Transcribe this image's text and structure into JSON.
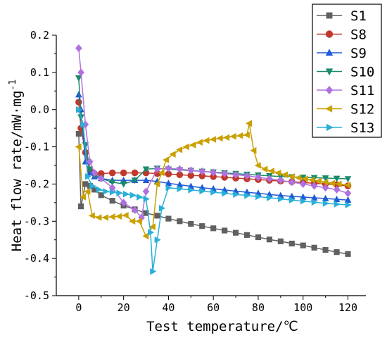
{
  "chart_data": {
    "type": "line",
    "xlabel": "Test temperature/℃",
    "ylabel": "Heat flow rate/mW·mg",
    "ylabel_sup": "-1",
    "xlim": [
      -10,
      128
    ],
    "ylim": [
      -0.5,
      0.2
    ],
    "xticks": [
      "0",
      "20",
      "40",
      "60",
      "80",
      "100",
      "120"
    ],
    "yticks": [
      "0.2",
      "0.1",
      "0.0",
      "-0.1",
      "-0.2",
      "-0.3",
      "-0.4",
      "-0.5"
    ],
    "legend_position": "top-right",
    "series": [
      {
        "name": "S1",
        "color": "#606060",
        "marker": "square",
        "x": [
          0,
          1,
          3,
          5,
          7,
          10,
          15,
          20,
          25,
          30,
          35,
          40,
          45,
          50,
          55,
          60,
          65,
          70,
          75,
          80,
          85,
          90,
          95,
          100,
          105,
          110,
          115,
          120
        ],
        "y": [
          -0.065,
          -0.26,
          -0.2,
          -0.205,
          -0.215,
          -0.23,
          -0.245,
          -0.258,
          -0.268,
          -0.278,
          -0.285,
          -0.293,
          -0.3,
          -0.307,
          -0.313,
          -0.319,
          -0.325,
          -0.331,
          -0.337,
          -0.343,
          -0.349,
          -0.354,
          -0.36,
          -0.365,
          -0.371,
          -0.377,
          -0.383,
          -0.388
        ]
      },
      {
        "name": "S8",
        "color": "#c0392b",
        "marker": "circle",
        "x": [
          0,
          1,
          3,
          5,
          7,
          10,
          15,
          20,
          25,
          30,
          35,
          40,
          45,
          50,
          55,
          60,
          65,
          70,
          75,
          80,
          85,
          90,
          95,
          100,
          105,
          110,
          115,
          120
        ],
        "y": [
          0.02,
          -0.05,
          -0.115,
          -0.165,
          -0.172,
          -0.172,
          -0.17,
          -0.17,
          -0.17,
          -0.17,
          -0.172,
          -0.173,
          -0.175,
          -0.177,
          -0.178,
          -0.18,
          -0.182,
          -0.184,
          -0.186,
          -0.188,
          -0.19,
          -0.192,
          -0.194,
          -0.196,
          -0.198,
          -0.2,
          -0.202,
          -0.205
        ]
      },
      {
        "name": "S9",
        "color": "#1f5bd6",
        "marker": "triangle-up",
        "x": [
          0,
          1,
          3,
          5,
          7,
          10,
          15,
          20,
          25,
          30,
          35,
          40,
          45,
          50,
          55,
          60,
          65,
          70,
          75,
          80,
          85,
          90,
          95,
          100,
          105,
          110,
          115,
          120
        ],
        "y": [
          0.04,
          0.0,
          -0.14,
          -0.17,
          -0.18,
          -0.185,
          -0.19,
          -0.19,
          -0.19,
          -0.19,
          -0.193,
          -0.198,
          -0.202,
          -0.206,
          -0.21,
          -0.213,
          -0.216,
          -0.219,
          -0.222,
          -0.225,
          -0.228,
          -0.231,
          -0.233,
          -0.235,
          -0.237,
          -0.239,
          -0.241,
          -0.243
        ]
      },
      {
        "name": "S10",
        "color": "#1a8a6a",
        "marker": "triangle-down",
        "x": [
          0,
          1,
          3,
          5,
          7,
          10,
          15,
          20,
          25,
          30,
          35,
          40,
          45,
          50,
          55,
          60,
          65,
          70,
          75,
          80,
          85,
          90,
          95,
          100,
          105,
          110,
          115,
          120
        ],
        "y": [
          0.085,
          -0.02,
          -0.095,
          -0.16,
          -0.175,
          -0.185,
          -0.195,
          -0.2,
          -0.19,
          -0.16,
          -0.158,
          -0.16,
          -0.162,
          -0.164,
          -0.166,
          -0.168,
          -0.17,
          -0.172,
          -0.174,
          -0.176,
          -0.178,
          -0.18,
          -0.181,
          -0.182,
          -0.183,
          -0.184,
          -0.185,
          -0.186
        ]
      },
      {
        "name": "S11",
        "color": "#b070e0",
        "marker": "diamond",
        "x": [
          0,
          1,
          3,
          5,
          7,
          10,
          15,
          20,
          25,
          28,
          30,
          35,
          40,
          45,
          50,
          55,
          60,
          65,
          70,
          75,
          80,
          85,
          90,
          95,
          100,
          105,
          110,
          115,
          120
        ],
        "y": [
          0.165,
          0.1,
          -0.04,
          -0.14,
          -0.17,
          -0.185,
          -0.21,
          -0.25,
          -0.27,
          -0.29,
          -0.22,
          -0.16,
          -0.158,
          -0.16,
          -0.163,
          -0.166,
          -0.169,
          -0.172,
          -0.175,
          -0.178,
          -0.182,
          -0.186,
          -0.19,
          -0.195,
          -0.2,
          -0.205,
          -0.21,
          -0.215,
          -0.225
        ]
      },
      {
        "name": "S12",
        "color": "#c9a000",
        "marker": "triangle-left",
        "x": [
          0,
          2,
          4,
          6,
          9,
          12,
          15,
          18,
          21,
          24,
          27,
          30,
          33,
          35,
          37,
          39,
          42,
          45,
          48,
          51,
          54,
          57,
          60,
          63,
          66,
          69,
          72,
          75,
          76,
          78,
          80,
          83,
          86,
          89,
          92,
          95,
          98,
          101,
          104,
          107,
          110,
          113,
          116,
          120
        ],
        "y": [
          -0.1,
          -0.235,
          -0.22,
          -0.285,
          -0.29,
          -0.29,
          -0.288,
          -0.287,
          -0.284,
          -0.3,
          -0.3,
          -0.34,
          -0.315,
          -0.2,
          -0.17,
          -0.135,
          -0.12,
          -0.108,
          -0.1,
          -0.095,
          -0.088,
          -0.083,
          -0.08,
          -0.077,
          -0.075,
          -0.072,
          -0.07,
          -0.068,
          -0.037,
          -0.11,
          -0.15,
          -0.16,
          -0.165,
          -0.17,
          -0.175,
          -0.18,
          -0.183,
          -0.186,
          -0.189,
          -0.192,
          -0.195,
          -0.198,
          -0.2,
          -0.203
        ]
      },
      {
        "name": "S13",
        "color": "#2ab0d8",
        "marker": "triangle-right",
        "x": [
          0,
          2,
          4,
          6,
          9,
          12,
          15,
          18,
          21,
          24,
          27,
          30,
          32,
          33,
          35,
          37,
          40,
          45,
          50,
          55,
          60,
          65,
          70,
          75,
          80,
          85,
          90,
          95,
          100,
          105,
          110,
          115,
          120
        ],
        "y": [
          0.0,
          -0.04,
          -0.18,
          -0.205,
          -0.215,
          -0.22,
          -0.222,
          -0.224,
          -0.227,
          -0.23,
          -0.235,
          -0.24,
          -0.33,
          -0.435,
          -0.35,
          -0.265,
          -0.21,
          -0.213,
          -0.216,
          -0.219,
          -0.222,
          -0.225,
          -0.228,
          -0.231,
          -0.234,
          -0.237,
          -0.24,
          -0.243,
          -0.246,
          -0.249,
          -0.252,
          -0.254,
          -0.256
        ]
      }
    ]
  }
}
